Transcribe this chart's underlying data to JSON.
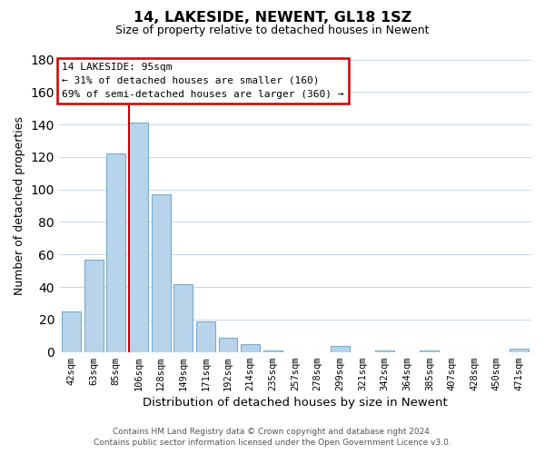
{
  "title": "14, LAKESIDE, NEWENT, GL18 1SZ",
  "subtitle": "Size of property relative to detached houses in Newent",
  "xlabel": "Distribution of detached houses by size in Newent",
  "ylabel": "Number of detached properties",
  "categories": [
    "42sqm",
    "63sqm",
    "85sqm",
    "106sqm",
    "128sqm",
    "149sqm",
    "171sqm",
    "192sqm",
    "214sqm",
    "235sqm",
    "257sqm",
    "278sqm",
    "299sqm",
    "321sqm",
    "342sqm",
    "364sqm",
    "385sqm",
    "407sqm",
    "428sqm",
    "450sqm",
    "471sqm"
  ],
  "values": [
    25,
    57,
    122,
    141,
    97,
    42,
    19,
    9,
    5,
    1,
    0,
    0,
    4,
    0,
    1,
    0,
    1,
    0,
    0,
    0,
    2
  ],
  "bar_color": "#b8d4ea",
  "bar_edge_color": "#7aabcf",
  "vline_color": "#cc0000",
  "ylim": [
    0,
    180
  ],
  "yticks": [
    0,
    20,
    40,
    60,
    80,
    100,
    120,
    140,
    160,
    180
  ],
  "annotation_title": "14 LAKESIDE: 95sqm",
  "annotation_line1": "← 31% of detached houses are smaller (160)",
  "annotation_line2": "69% of semi-detached houses are larger (360) →",
  "annotation_box_color": "#ffffff",
  "annotation_box_edge": "#cc0000",
  "footer_line1": "Contains HM Land Registry data © Crown copyright and database right 2024.",
  "footer_line2": "Contains public sector information licensed under the Open Government Licence v3.0.",
  "background_color": "#ffffff",
  "grid_color": "#ccd8e8"
}
